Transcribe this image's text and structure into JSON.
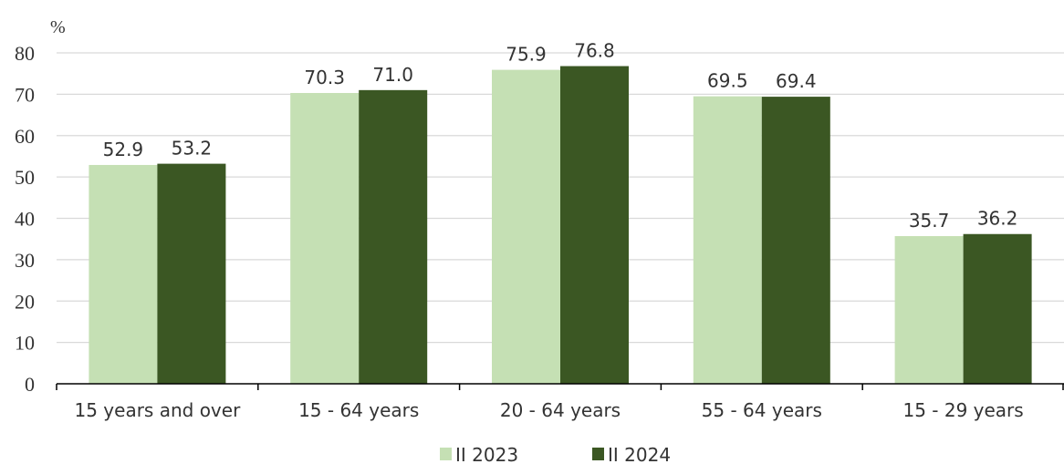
{
  "chart_data": {
    "type": "bar",
    "unit_label": "%",
    "categories": [
      "15 years and over",
      "15 - 64 years",
      "20 - 64 years",
      "55 - 64 years",
      "15 - 29 years"
    ],
    "series": [
      {
        "name": "II 2023",
        "values": [
          52.9,
          70.3,
          75.9,
          69.5,
          35.7
        ],
        "value_labels": [
          "52.9",
          "70.3",
          "75.9",
          "69.5",
          "35.7"
        ],
        "color": "#c5e0b4"
      },
      {
        "name": "II 2024",
        "values": [
          53.2,
          71.0,
          76.8,
          69.4,
          36.2
        ],
        "value_labels": [
          "53.2",
          "71.0",
          "76.8",
          "69.4",
          "36.2"
        ],
        "color": "#3b5723"
      }
    ],
    "ylim": [
      0,
      80
    ],
    "yticks": [
      "0",
      "10",
      "20",
      "30",
      "40",
      "50",
      "60",
      "70",
      "80"
    ],
    "grid": true,
    "legend_position": "bottom"
  }
}
